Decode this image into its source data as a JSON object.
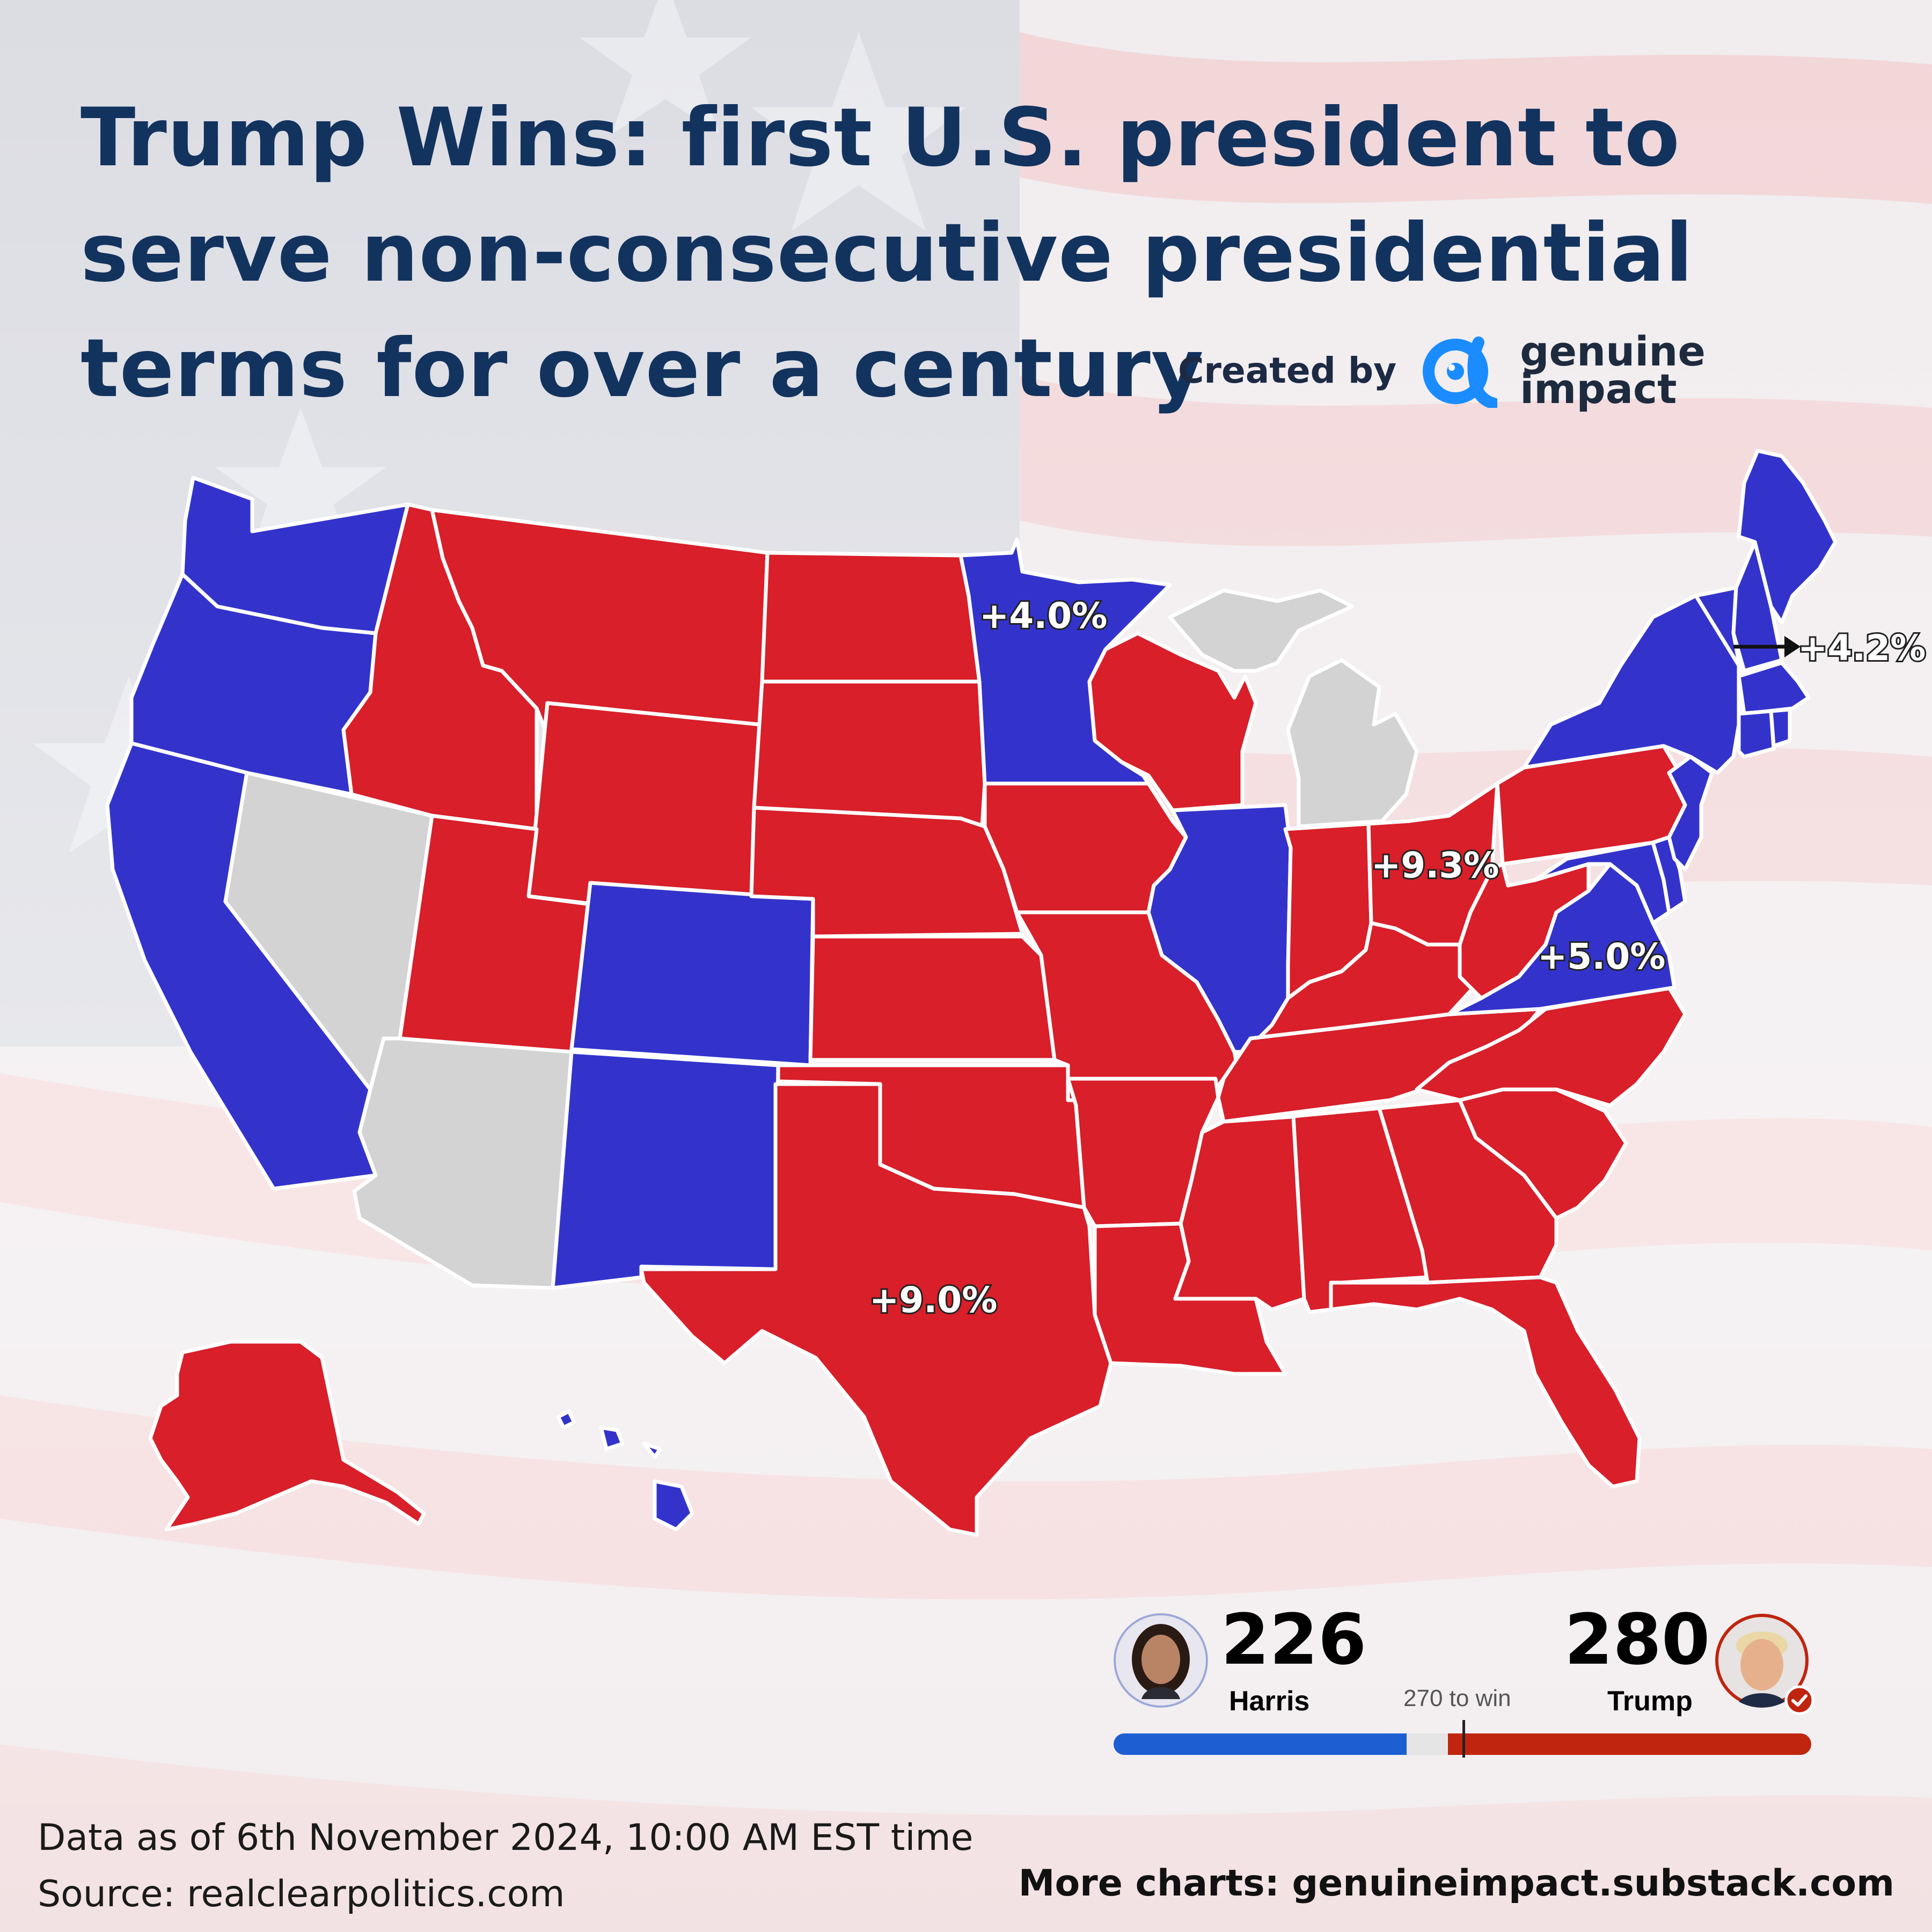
{
  "headline": {
    "lead": "Trump Wins:",
    "rest": " first U.S. president to serve non-consecutive presidential terms for over a century"
  },
  "credit": {
    "label": "Created by",
    "brand_line1": "genuine",
    "brand_line2": "impact",
    "logo_icon": "genuine-impact-logo-icon",
    "brand_color": "#1a8cff"
  },
  "colors": {
    "republican": "#d81f2a",
    "democrat": "#3333cc",
    "uncalled": "#d3d3d3",
    "harris_blue": "#1d5fd3",
    "trump_red": "#c0250f"
  },
  "map": {
    "state_results": {
      "WA": "dem",
      "OR": "dem",
      "CA": "dem",
      "NV": "tos",
      "ID": "rep",
      "MT": "rep",
      "WY": "rep",
      "UT": "rep",
      "AZ": "tos",
      "CO": "dem",
      "NM": "dem",
      "ND": "rep",
      "SD": "rep",
      "NE": "rep",
      "KS": "rep",
      "OK": "rep",
      "TX": "rep",
      "MN": "dem",
      "IA": "rep",
      "MO": "rep",
      "AR": "rep",
      "LA": "rep",
      "WI": "rep",
      "IL": "dem",
      "MI": "tos",
      "IN": "rep",
      "OH": "rep",
      "KY": "rep",
      "TN": "rep",
      "MS": "rep",
      "AL": "rep",
      "GA": "rep",
      "FL": "rep",
      "SC": "rep",
      "NC": "rep",
      "VA": "dem",
      "WV": "rep",
      "PA": "rep",
      "NY": "dem",
      "NJ": "dem",
      "DE": "dem",
      "MD": "dem",
      "CT": "dem",
      "RI": "dem",
      "MA": "dem",
      "VT": "dem",
      "NH": "dem",
      "ME": "dem",
      "AK": "rep",
      "HI": "dem"
    },
    "margin_labels": [
      {
        "state": "MN",
        "text": "+4.0%"
      },
      {
        "state": "OH",
        "text": "+9.3%"
      },
      {
        "state": "VA",
        "text": "+5.0%"
      },
      {
        "state": "TX",
        "text": "+9.0%"
      },
      {
        "state": "NH",
        "text": "+4.2%"
      }
    ]
  },
  "tally": {
    "harris": {
      "name": "Harris",
      "votes": "226",
      "votes_value": 226,
      "avatar": "harris-avatar"
    },
    "trump": {
      "name": "Trump",
      "votes": "280",
      "votes_value": 280,
      "avatar": "trump-avatar",
      "winner_badge": "check-icon"
    },
    "threshold_label": "270 to win",
    "threshold_value": 270,
    "total_votes": 538
  },
  "footer": {
    "date_note": "Data as of 6th November 2024, 10:00 AM EST time",
    "source": "Source: realclearpolitics.com",
    "more": "More charts: genuineimpact.substack.com"
  }
}
